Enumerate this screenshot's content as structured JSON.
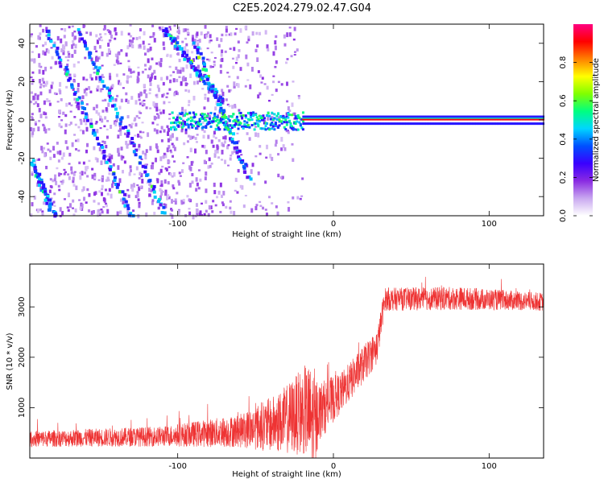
{
  "title": "C2E5.2024.279.02.47.G04",
  "chart_data": [
    {
      "type": "heatmap",
      "xlabel": "Height of straight line (km)",
      "ylabel": "Frequency (Hz)",
      "xlim": [
        -195,
        135
      ],
      "ylim": [
        -50,
        50
      ],
      "xticks": [
        -100,
        0,
        100
      ],
      "yticks": [
        -40,
        -20,
        0,
        20,
        40
      ],
      "colorbar": {
        "label": "Normalized spectral amplitude",
        "range": [
          0,
          1
        ],
        "ticks": [
          "0.0",
          "0.2",
          "0.4",
          "0.6",
          "0.8"
        ],
        "colormap": [
          "#ffffff",
          "#c9a8f0",
          "#8a2be2",
          "#3a00ff",
          "#0050ff",
          "#00d5ff",
          "#00ff80",
          "#80ff00",
          "#ffff00",
          "#ff8000",
          "#ff0000",
          "#ff0080"
        ]
      },
      "features": {
        "carrier": {
          "freq_hz": 0,
          "x_start_km": -105,
          "x_end_km": 135,
          "peak_amplitude": 1.0,
          "peak_start_km": -20
        },
        "scattered_noise_region_km": [
          -195,
          -20
        ],
        "diagonal_streaks": [
          {
            "from": [
              -185,
              48
            ],
            "to": [
              -130,
              -50
            ]
          },
          {
            "from": [
              -165,
              48
            ],
            "to": [
              -108,
              -50
            ]
          },
          {
            "from": [
              -110,
              48
            ],
            "to": [
              -72,
              10
            ]
          },
          {
            "from": [
              -200,
              -10
            ],
            "to": [
              -180,
              -50
            ]
          },
          {
            "from": [
              -90,
              40
            ],
            "to": [
              -55,
              -30
            ]
          }
        ]
      }
    },
    {
      "type": "line",
      "xlabel": "Height of straight line (km)",
      "ylabel": "SNR (10 * v/v)",
      "xlim": [
        -195,
        135
      ],
      "ylim": [
        0,
        3850
      ],
      "xticks": [
        -100,
        0,
        100
      ],
      "yticks": [
        1000,
        2000,
        3000
      ],
      "color": "#ee3333",
      "envelope": [
        {
          "x": -195,
          "base": 380,
          "amp": 160
        },
        {
          "x": -110,
          "base": 430,
          "amp": 200
        },
        {
          "x": -60,
          "base": 540,
          "amp": 330
        },
        {
          "x": -35,
          "base": 700,
          "amp": 600
        },
        {
          "x": -18,
          "base": 950,
          "amp": 900
        },
        {
          "x": -12,
          "base": 600,
          "amp": 1200
        },
        {
          "x": -10,
          "base": 900,
          "amp": 600
        },
        {
          "x": 5,
          "base": 1300,
          "amp": 400
        },
        {
          "x": 28,
          "base": 2200,
          "amp": 350
        },
        {
          "x": 33,
          "base": 3150,
          "amp": 230
        },
        {
          "x": 80,
          "base": 3170,
          "amp": 230
        },
        {
          "x": 135,
          "base": 3100,
          "amp": 180
        }
      ]
    }
  ]
}
